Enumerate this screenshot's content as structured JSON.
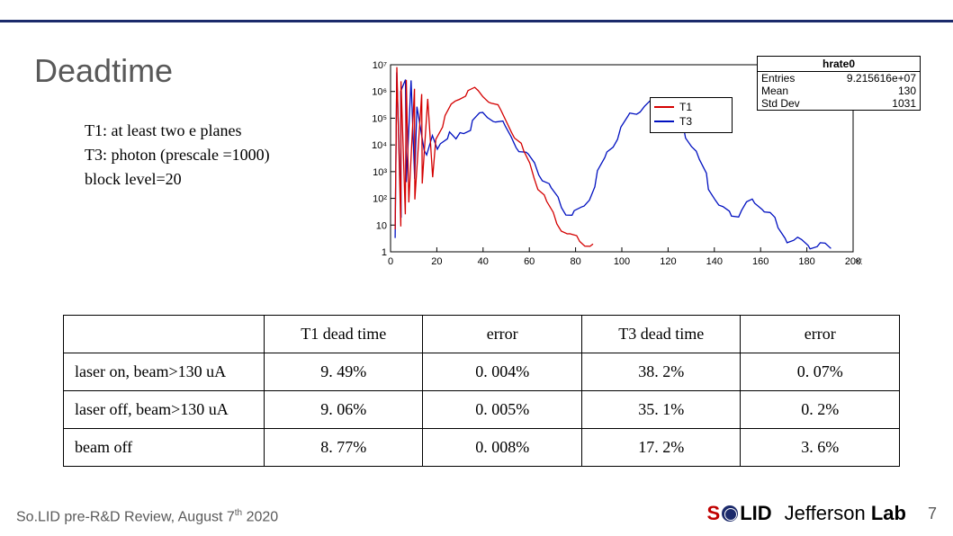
{
  "title": "Deadtime",
  "subtext": {
    "l1": "T1: at least two e planes",
    "l2": "T3: photon (prescale =1000)",
    "l3": "block level=20"
  },
  "chart": {
    "type": "line",
    "background_color": "#ffffff",
    "series": [
      {
        "name": "T1",
        "color": "#d40000"
      },
      {
        "name": "T3",
        "color": "#0010c0"
      }
    ],
    "x_ticks": [
      "0",
      "20",
      "40",
      "60",
      "80",
      "100",
      "120",
      "140",
      "160",
      "180",
      "200"
    ],
    "x_exp": "×10³",
    "y_ticks": [
      "1",
      "10",
      "10²",
      "10³",
      "10⁴",
      "10⁵",
      "10⁶",
      "10⁷"
    ],
    "y_scale": "log",
    "grid_color": "#000000",
    "stats": {
      "title": "hrate0",
      "entries_label": "Entries",
      "entries_value": "9.215616e+07",
      "mean_label": "Mean",
      "mean_value": "130",
      "std_label": "Std Dev",
      "std_value": "1031"
    },
    "t3_path": [
      [
        2,
        0.05
      ],
      [
        3,
        0.95
      ],
      [
        4,
        0.2
      ],
      [
        5,
        0.88
      ],
      [
        6,
        0.92
      ],
      [
        7,
        0.35
      ],
      [
        9,
        0.9
      ],
      [
        10,
        0.4
      ],
      [
        12,
        0.8
      ],
      [
        14,
        0.55
      ],
      [
        16,
        0.5
      ],
      [
        18,
        0.6
      ],
      [
        20,
        0.55
      ],
      [
        22,
        0.6
      ],
      [
        24,
        0.62
      ],
      [
        26,
        0.63
      ],
      [
        28,
        0.58
      ],
      [
        30,
        0.63
      ],
      [
        32,
        0.65
      ],
      [
        34,
        0.67
      ],
      [
        36,
        0.7
      ],
      [
        38,
        0.72
      ],
      [
        40,
        0.73
      ],
      [
        42,
        0.73
      ],
      [
        44,
        0.72
      ],
      [
        46,
        0.7
      ],
      [
        48,
        0.68
      ],
      [
        50,
        0.65
      ],
      [
        52,
        0.62
      ],
      [
        54,
        0.58
      ],
      [
        56,
        0.55
      ],
      [
        58,
        0.52
      ],
      [
        60,
        0.5
      ],
      [
        62,
        0.47
      ],
      [
        64,
        0.43
      ],
      [
        66,
        0.4
      ],
      [
        68,
        0.36
      ],
      [
        70,
        0.32
      ],
      [
        72,
        0.28
      ],
      [
        74,
        0.25
      ],
      [
        76,
        0.22
      ],
      [
        78,
        0.2
      ],
      [
        80,
        0.2
      ],
      [
        82,
        0.22
      ],
      [
        84,
        0.25
      ],
      [
        86,
        0.3
      ],
      [
        88,
        0.36
      ],
      [
        90,
        0.42
      ],
      [
        92,
        0.48
      ],
      [
        94,
        0.53
      ],
      [
        96,
        0.58
      ],
      [
        98,
        0.62
      ],
      [
        100,
        0.66
      ],
      [
        102,
        0.7
      ],
      [
        104,
        0.73
      ],
      [
        106,
        0.75
      ],
      [
        108,
        0.77
      ],
      [
        110,
        0.78
      ],
      [
        112,
        0.79
      ],
      [
        114,
        0.79
      ],
      [
        116,
        0.79
      ],
      [
        118,
        0.78
      ],
      [
        120,
        0.76
      ],
      [
        122,
        0.74
      ],
      [
        124,
        0.71
      ],
      [
        126,
        0.67
      ],
      [
        128,
        0.63
      ],
      [
        130,
        0.58
      ],
      [
        132,
        0.53
      ],
      [
        134,
        0.47
      ],
      [
        136,
        0.41
      ],
      [
        138,
        0.35
      ],
      [
        140,
        0.3
      ],
      [
        142,
        0.25
      ],
      [
        144,
        0.22
      ],
      [
        146,
        0.2
      ],
      [
        148,
        0.2
      ],
      [
        150,
        0.21
      ],
      [
        152,
        0.23
      ],
      [
        154,
        0.25
      ],
      [
        156,
        0.26
      ],
      [
        158,
        0.26
      ],
      [
        160,
        0.25
      ],
      [
        162,
        0.23
      ],
      [
        164,
        0.2
      ],
      [
        166,
        0.16
      ],
      [
        168,
        0.12
      ],
      [
        170,
        0.09
      ],
      [
        172,
        0.07
      ],
      [
        174,
        0.06
      ],
      [
        176,
        0.055
      ],
      [
        178,
        0.05
      ],
      [
        180,
        0.045
      ],
      [
        182,
        0.04
      ],
      [
        184,
        0.035
      ],
      [
        186,
        0.03
      ],
      [
        188,
        0.025
      ],
      [
        190,
        0.02
      ]
    ],
    "t1_path": [
      [
        2,
        0.1
      ],
      [
        3,
        0.98
      ],
      [
        4,
        0.15
      ],
      [
        5,
        0.93
      ],
      [
        6,
        0.2
      ],
      [
        7,
        0.9
      ],
      [
        8,
        0.25
      ],
      [
        10,
        0.88
      ],
      [
        11,
        0.3
      ],
      [
        13,
        0.85
      ],
      [
        14,
        0.35
      ],
      [
        16,
        0.8
      ],
      [
        18,
        0.4
      ],
      [
        20,
        0.62
      ],
      [
        22,
        0.68
      ],
      [
        24,
        0.72
      ],
      [
        26,
        0.77
      ],
      [
        28,
        0.8
      ],
      [
        30,
        0.83
      ],
      [
        32,
        0.85
      ],
      [
        34,
        0.86
      ],
      [
        36,
        0.86
      ],
      [
        38,
        0.85
      ],
      [
        40,
        0.84
      ],
      [
        42,
        0.82
      ],
      [
        44,
        0.8
      ],
      [
        46,
        0.77
      ],
      [
        48,
        0.74
      ],
      [
        50,
        0.7
      ],
      [
        52,
        0.66
      ],
      [
        54,
        0.62
      ],
      [
        56,
        0.57
      ],
      [
        58,
        0.52
      ],
      [
        60,
        0.47
      ],
      [
        62,
        0.41
      ],
      [
        64,
        0.35
      ],
      [
        66,
        0.3
      ],
      [
        68,
        0.25
      ],
      [
        70,
        0.2
      ],
      [
        72,
        0.16
      ],
      [
        74,
        0.13
      ],
      [
        76,
        0.1
      ],
      [
        78,
        0.08
      ],
      [
        80,
        0.07
      ],
      [
        82,
        0.06
      ],
      [
        84,
        0.05
      ],
      [
        86,
        0.04
      ],
      [
        88,
        0.03
      ]
    ]
  },
  "table": {
    "headers": [
      "",
      "T1 dead time",
      "error",
      "T3 dead time",
      "error"
    ],
    "rows": [
      [
        "laser on, beam>130 uA",
        "9. 49%",
        "0. 004%",
        "38. 2%",
        "0. 07%"
      ],
      [
        "laser off, beam>130 uA",
        "9. 06%",
        "0. 005%",
        "35. 1%",
        "0. 2%"
      ],
      [
        "beam off",
        "8. 77%",
        "0. 008%",
        "17. 2%",
        "3. 6%"
      ]
    ],
    "col_widths": [
      "24%",
      "19%",
      "19%",
      "19%",
      "19%"
    ]
  },
  "footer": {
    "left_pre": "So.LID pre-R&D Review, August 7",
    "left_sup": "th",
    "left_post": " 2020",
    "page": "7"
  }
}
